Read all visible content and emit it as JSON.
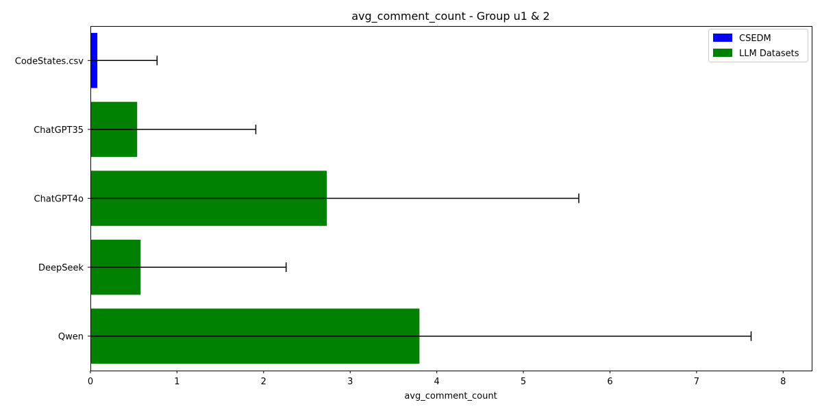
{
  "chart_data": {
    "type": "bar",
    "orientation": "horizontal",
    "title": "avg_comment_count - Group u1 & 2",
    "xlabel": "avg_comment_count",
    "ylabel": "",
    "categories": [
      "CodeStates.csv",
      "ChatGPT35",
      "ChatGPT4o",
      "DeepSeek",
      "Qwen"
    ],
    "values": [
      0.08,
      0.54,
      2.73,
      0.58,
      3.8
    ],
    "errors": [
      0.69,
      1.37,
      2.91,
      1.68,
      3.83
    ],
    "groups": [
      "CSEDM",
      "LLM Datasets",
      "LLM Datasets",
      "LLM Datasets",
      "LLM Datasets"
    ],
    "xlim": [
      0,
      8.33
    ],
    "xticks": [
      0,
      1,
      2,
      3,
      4,
      5,
      6,
      7,
      8
    ],
    "grid": false,
    "legend": {
      "placement": "top-right",
      "entries": [
        {
          "label": "CSEDM",
          "color": "#0000ff"
        },
        {
          "label": "LLM Datasets",
          "color": "#008000"
        }
      ]
    }
  }
}
